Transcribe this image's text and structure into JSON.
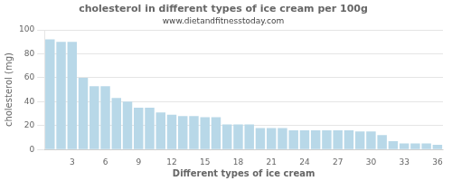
{
  "chart_data": {
    "type": "bar",
    "title": "cholesterol in different types of ice cream per 100g",
    "subtitle": "www.dietandfitnesstoday.com",
    "xlabel": "Different types of ice cream",
    "ylabel": "cholesterol (mg)",
    "categories": [
      null,
      null,
      "3",
      null,
      null,
      "6",
      null,
      null,
      "9",
      null,
      null,
      "12",
      null,
      null,
      "15",
      null,
      null,
      "18",
      null,
      null,
      "21",
      null,
      null,
      "24",
      null,
      null,
      "27",
      null,
      null,
      "30",
      null,
      null,
      "33",
      null,
      null,
      "36"
    ],
    "values": [
      92,
      90,
      90,
      60,
      53,
      53,
      43,
      40,
      35,
      35,
      31,
      29,
      28,
      28,
      27,
      27,
      21,
      21,
      21,
      18,
      18,
      18,
      16,
      16,
      16,
      16,
      16,
      16,
      15,
      15,
      12,
      7,
      5,
      5,
      5,
      4
    ],
    "color": "#b8d8e8",
    "ylim": [
      0,
      100
    ],
    "yticks": [
      0,
      20,
      40,
      60,
      80,
      100
    ],
    "grid": true
  }
}
